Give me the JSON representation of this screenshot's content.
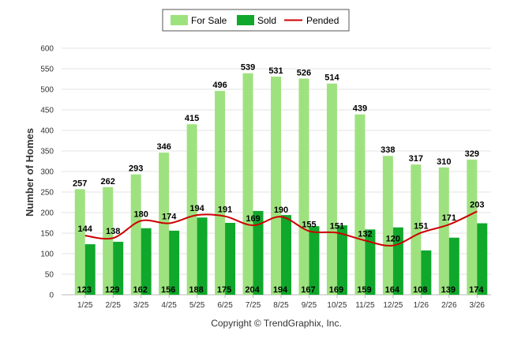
{
  "chart_data": {
    "type": "bar",
    "categories": [
      "1/25",
      "2/25",
      "3/25",
      "4/25",
      "5/25",
      "6/25",
      "7/25",
      "8/25",
      "9/25",
      "10/25",
      "11/25",
      "12/25",
      "1/26",
      "2/26",
      "3/26"
    ],
    "series": [
      {
        "name": "For Sale",
        "kind": "bar",
        "color": "#9ee27f",
        "values": [
          257,
          262,
          293,
          346,
          415,
          496,
          539,
          531,
          526,
          514,
          439,
          338,
          317,
          310,
          329
        ]
      },
      {
        "name": "Sold",
        "kind": "bar",
        "color": "#10a82c",
        "values": [
          123,
          129,
          162,
          156,
          188,
          175,
          204,
          194,
          167,
          169,
          159,
          164,
          108,
          139,
          174
        ]
      },
      {
        "name": "Pended",
        "kind": "line",
        "color": "#cc0000",
        "values": [
          144,
          138,
          180,
          174,
          194,
          191,
          169,
          190,
          155,
          151,
          132,
          120,
          151,
          171,
          203
        ]
      }
    ],
    "ylabel": "Number of Homes",
    "ylim": [
      0,
      600
    ],
    "yticks": [
      0,
      50,
      100,
      150,
      200,
      250,
      300,
      350,
      400,
      450,
      500,
      550,
      600
    ],
    "grid": true,
    "legend_position": "top-center"
  },
  "footer": {
    "copyright": "Copyright © TrendGraphix, Inc."
  }
}
